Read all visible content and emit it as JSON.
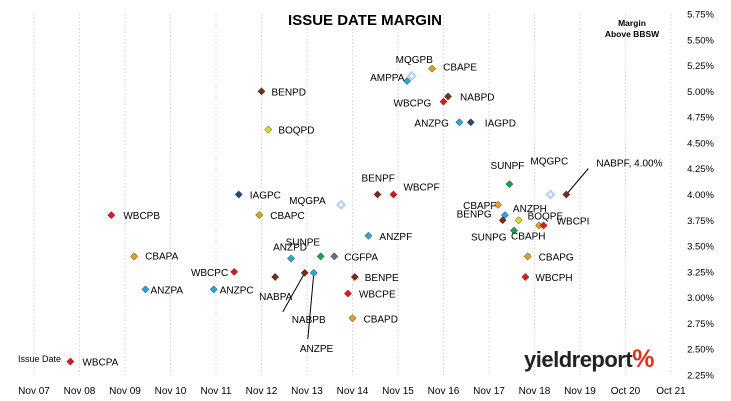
{
  "chart_data": {
    "type": "scatter",
    "title": "ISSUE DATE MARGIN",
    "unit_label": [
      "Margin",
      "Above BBSW"
    ],
    "issue_legend": "Issue Date",
    "logo": {
      "text": "yieldreport",
      "symbol": "%"
    },
    "x_ticks": [
      "Nov 07",
      "Nov 08",
      "Nov 09",
      "Nov 10",
      "Nov 11",
      "Nov 12",
      "Nov 13",
      "Nov 14",
      "Nov 15",
      "Nov 16",
      "Nov 17",
      "Nov 18",
      "Nov 19",
      "Oct 20",
      "Oct 21"
    ],
    "y_ticks": [
      "2.25%",
      "2.50%",
      "2.75%",
      "3.00%",
      "3.25%",
      "3.50%",
      "3.75%",
      "4.00%",
      "4.25%",
      "4.50%",
      "4.75%",
      "5.00%",
      "5.25%",
      "5.50%",
      "5.75%"
    ],
    "ylim": [
      2.25,
      5.75
    ],
    "xlim": [
      0,
      14
    ],
    "grid": "vertical-dotted",
    "colors": {
      "red": "#e8141c",
      "darkred": "#7a2a1e",
      "orange": "#e3a21a",
      "lightgreen": "#d8e020",
      "blue": "#2aa6e0",
      "navy": "#1f4a7a",
      "green": "#12a84e",
      "slate": "#5c6f86",
      "lightblue": "#b3d3ee",
      "black": "#222222"
    },
    "points": [
      {
        "label": "WBCPA",
        "x": 0.8,
        "y": 2.38,
        "color": "red"
      },
      {
        "label": "WBCPB",
        "x": 1.7,
        "y": 3.8,
        "color": "red"
      },
      {
        "label": "CBAPA",
        "x": 2.2,
        "y": 3.4,
        "color": "orange"
      },
      {
        "label": "ANZPA",
        "x": 2.45,
        "y": 3.08,
        "color": "blue"
      },
      {
        "label": "ANZPC",
        "x": 3.95,
        "y": 3.08,
        "color": "blue"
      },
      {
        "label": "WBCPC",
        "x": 4.4,
        "y": 3.25,
        "color": "red"
      },
      {
        "label": "IAGPC",
        "x": 4.5,
        "y": 4.0,
        "color": "navy"
      },
      {
        "label": "BENPD",
        "x": 5.0,
        "y": 5.0,
        "color": "darkred"
      },
      {
        "label": "BOQPD",
        "x": 5.15,
        "y": 4.63,
        "color": "lightgreen"
      },
      {
        "label": "CBAPC",
        "x": 4.95,
        "y": 3.8,
        "color": "orange"
      },
      {
        "label": "NABPA",
        "x": 5.3,
        "y": 3.2,
        "color": "darkred"
      },
      {
        "label": "ANZPD",
        "x": 5.65,
        "y": 3.38,
        "color": "blue"
      },
      {
        "label": "NABPB",
        "x": 5.95,
        "y": 3.24,
        "color": "darkred"
      },
      {
        "label": "ANZPE",
        "x": 6.15,
        "y": 3.24,
        "color": "blue"
      },
      {
        "label": "SUNPE",
        "x": 6.3,
        "y": 3.4,
        "color": "green"
      },
      {
        "label": "CGFPA",
        "x": 6.6,
        "y": 3.4,
        "color": "slate"
      },
      {
        "label": "MQGPA",
        "x": 6.75,
        "y": 3.9,
        "color": "lightblue"
      },
      {
        "label": "WBCPE",
        "x": 6.9,
        "y": 3.04,
        "color": "red"
      },
      {
        "label": "BENPE",
        "x": 7.05,
        "y": 3.2,
        "color": "darkred"
      },
      {
        "label": "CBAPD",
        "x": 7.0,
        "y": 2.8,
        "color": "orange"
      },
      {
        "label": "ANZPF",
        "x": 7.35,
        "y": 3.6,
        "color": "blue"
      },
      {
        "label": "BENPF",
        "x": 7.55,
        "y": 4.0,
        "color": "darkred"
      },
      {
        "label": "WBCPF",
        "x": 7.9,
        "y": 4.0,
        "color": "red"
      },
      {
        "label": "AMPPA",
        "x": 8.2,
        "y": 5.1,
        "color": "blue"
      },
      {
        "label": "MQGPB",
        "x": 8.3,
        "y": 5.15,
        "color": "lightblue"
      },
      {
        "label": "CBAPE",
        "x": 8.75,
        "y": 5.22,
        "color": "orange"
      },
      {
        "label": "WBCPG",
        "x": 9.0,
        "y": 4.9,
        "color": "red"
      },
      {
        "label": "NABPD",
        "x": 9.1,
        "y": 4.95,
        "color": "darkred"
      },
      {
        "label": "ANZPG",
        "x": 9.35,
        "y": 4.7,
        "color": "blue"
      },
      {
        "label": "IAGPD",
        "x": 9.6,
        "y": 4.7,
        "color": "navy"
      },
      {
        "label": "CBAPF",
        "x": 10.2,
        "y": 3.9,
        "color": "orange"
      },
      {
        "label": "SUNPF",
        "x": 10.45,
        "y": 4.1,
        "color": "green"
      },
      {
        "label": "ANZPH",
        "x": 10.35,
        "y": 3.8,
        "color": "blue"
      },
      {
        "label": "BENPG",
        "x": 10.3,
        "y": 3.75,
        "color": "darkred"
      },
      {
        "label": "SUNPG",
        "x": 10.55,
        "y": 3.65,
        "color": "green"
      },
      {
        "label": "BOQPE",
        "x": 10.65,
        "y": 3.75,
        "color": "lightgreen"
      },
      {
        "label": "CBAPG",
        "x": 10.85,
        "y": 3.4,
        "color": "orange"
      },
      {
        "label": "WBCPH",
        "x": 10.8,
        "y": 3.2,
        "color": "red"
      },
      {
        "label": "MQGPC",
        "x": 11.35,
        "y": 4.0,
        "color": "lightblue"
      },
      {
        "label": "CBAPH",
        "x": 11.1,
        "y": 3.7,
        "color": "orange"
      },
      {
        "label": "WBCPI",
        "x": 11.2,
        "y": 3.7,
        "color": "red"
      },
      {
        "label": "NABPF, 4.00%",
        "x": 11.7,
        "y": 4.0,
        "color": "darkred"
      }
    ]
  }
}
